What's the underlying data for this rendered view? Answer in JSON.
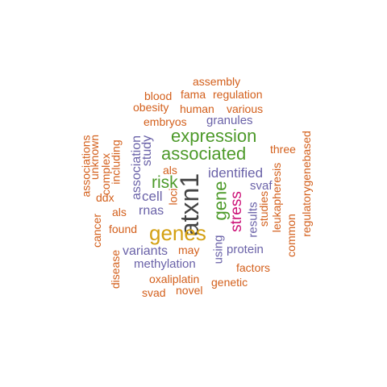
{
  "colors": {
    "dark": "#444444",
    "green": "#4d9a2a",
    "gold": "#d4a012",
    "magenta": "#cc1177",
    "purple": "#6a62a8",
    "orange": "#d35f1b"
  },
  "words": [
    {
      "text": "atxn1",
      "color": "dark"
    },
    {
      "text": "genes",
      "color": "gold"
    },
    {
      "text": "expression",
      "color": "green"
    },
    {
      "text": "associated",
      "color": "green"
    },
    {
      "text": "gene",
      "color": "green"
    },
    {
      "text": "risk",
      "color": "green"
    },
    {
      "text": "stress",
      "color": "magenta"
    },
    {
      "text": "identified",
      "color": "purple"
    },
    {
      "text": "study",
      "color": "purple"
    },
    {
      "text": "association",
      "color": "purple"
    },
    {
      "text": "cell",
      "color": "purple"
    },
    {
      "text": "variants",
      "color": "purple"
    },
    {
      "text": "methylation",
      "color": "purple"
    },
    {
      "text": "granules",
      "color": "purple"
    },
    {
      "text": "rnas",
      "color": "purple"
    },
    {
      "text": "protein",
      "color": "purple"
    },
    {
      "text": "results",
      "color": "purple"
    },
    {
      "text": "svaf",
      "color": "purple"
    },
    {
      "text": "using",
      "color": "purple"
    },
    {
      "text": "assembly",
      "color": "orange"
    },
    {
      "text": "fama",
      "color": "orange"
    },
    {
      "text": "regulation",
      "color": "orange"
    },
    {
      "text": "blood",
      "color": "orange"
    },
    {
      "text": "obesity",
      "color": "orange"
    },
    {
      "text": "human",
      "color": "orange"
    },
    {
      "text": "various",
      "color": "orange"
    },
    {
      "text": "embryos",
      "color": "orange"
    },
    {
      "text": "three",
      "color": "orange"
    },
    {
      "text": "als",
      "color": "orange"
    },
    {
      "text": "loci",
      "color": "orange"
    },
    {
      "text": "als",
      "color": "orange"
    },
    {
      "text": "found",
      "color": "orange"
    },
    {
      "text": "may",
      "color": "orange"
    },
    {
      "text": "factors",
      "color": "orange"
    },
    {
      "text": "oxaliplatin",
      "color": "orange"
    },
    {
      "text": "genetic",
      "color": "orange"
    },
    {
      "text": "svad",
      "color": "orange"
    },
    {
      "text": "novel",
      "color": "orange"
    },
    {
      "text": "ddx",
      "color": "orange"
    },
    {
      "text": "associations",
      "color": "orange"
    },
    {
      "text": "unknown",
      "color": "orange"
    },
    {
      "text": "complex",
      "color": "orange"
    },
    {
      "text": "including",
      "color": "orange"
    },
    {
      "text": "cancer",
      "color": "orange"
    },
    {
      "text": "disease",
      "color": "orange"
    },
    {
      "text": "leukapheresis",
      "color": "orange"
    },
    {
      "text": "studies",
      "color": "orange"
    },
    {
      "text": "common",
      "color": "orange"
    },
    {
      "text": "regulatorygenebased",
      "color": "orange"
    }
  ]
}
